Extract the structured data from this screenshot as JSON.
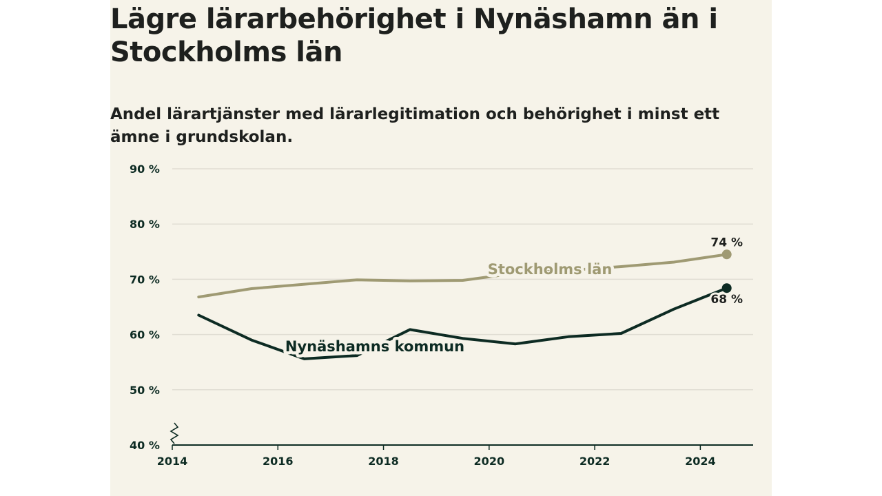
{
  "title": "Lägre lärarbehörighet i Nynäshamn än i Stockholms län",
  "subtitle": "Andel lärartjänster med lärarlegitimation och behörighet i minst ett ämne i grundskolan.",
  "colors": {
    "background": "#f6f3e9",
    "stockholm": "#9f9a73",
    "nynashamn": "#0d2b23",
    "grid": "#e0ddd3",
    "axis": "#0d2b23"
  },
  "chart_data": {
    "type": "line",
    "title": "Lägre lärarbehörighet i Nynäshamn än i Stockholms län",
    "subtitle": "Andel lärartjänster med lärarlegitimation och behörighet i minst ett ämne i grundskolan.",
    "xlabel": "",
    "ylabel": "",
    "xlim": [
      2014,
      2025
    ],
    "ylim": [
      40,
      90
    ],
    "y_broken_axis": true,
    "grid": "horizontal",
    "x_ticks": [
      2014,
      2016,
      2018,
      2020,
      2022,
      2024
    ],
    "y_ticks": [
      40,
      50,
      60,
      70,
      80,
      90
    ],
    "x_tick_labels": [
      "2014",
      "2016",
      "2018",
      "2020",
      "2022",
      "2024"
    ],
    "y_tick_labels": [
      "40 %",
      "50 %",
      "60 %",
      "70 %",
      "80 %",
      "90 %"
    ],
    "series": [
      {
        "name": "Stockholms län",
        "x": [
          2014.5,
          2015.5,
          2016.5,
          2017.5,
          2018.5,
          2019.5,
          2020.5,
          2021.5,
          2022.5,
          2023.5,
          2024.5
        ],
        "values": [
          66.8,
          68.3,
          69.1,
          69.9,
          69.7,
          69.8,
          71.1,
          71.6,
          72.3,
          73.1,
          74.5
        ],
        "end_label": "74 %",
        "end_marker": true
      },
      {
        "name": "Nynäshamns kommun",
        "x": [
          2014.5,
          2015.5,
          2016.5,
          2017.5,
          2018.5,
          2019.5,
          2020.5,
          2021.5,
          2022.5,
          2023.5,
          2024.5
        ],
        "values": [
          63.5,
          59.0,
          55.6,
          56.2,
          60.9,
          59.3,
          58.3,
          59.6,
          60.2,
          64.6,
          68.4
        ],
        "end_label": "68 %",
        "end_marker": true
      }
    ]
  }
}
